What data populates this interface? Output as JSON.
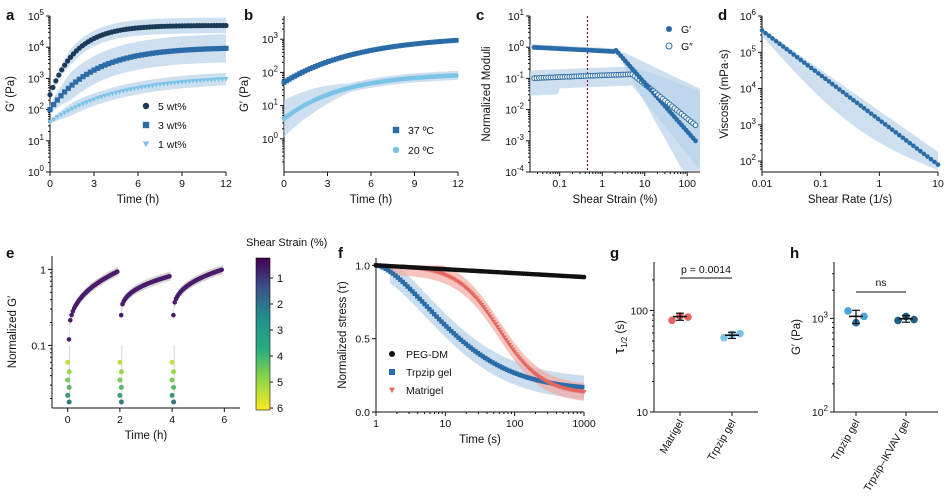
{
  "colors": {
    "dark": "#1b3a5a",
    "mid": "#2b6ca8",
    "light": "#7cc3e8",
    "band": "#b9d3ea",
    "red": "#e3665f",
    "redband": "#f2a9a3",
    "black": "#111111",
    "vline": "#8a1d38"
  },
  "panels": {
    "a": "a",
    "b": "b",
    "c": "c",
    "d": "d",
    "e": "e",
    "f": "f",
    "g": "g",
    "h": "h"
  },
  "colorbar": {
    "title": "Shear Strain (%)",
    "ticks": [
      "1",
      "2",
      "3",
      "4",
      "5",
      "6"
    ]
  },
  "chart_data": [
    {
      "id": "a",
      "type": "scatter",
      "xlabel": "Time (h)",
      "ylabel": "G′ (Pa)",
      "xlim": [
        0,
        12
      ],
      "ylim": [
        1,
        100000
      ],
      "yscale": "log",
      "xticks": [
        "0",
        "3",
        "6",
        "9",
        "12"
      ],
      "yticks": [
        "10^0",
        "10^1",
        "10^2",
        "10^3",
        "10^4",
        "10^5"
      ],
      "series": [
        {
          "name": "5 wt%",
          "model": {
            "start": 300,
            "end": 50000,
            "tau": 1.8
          }
        },
        {
          "name": "3 wt%",
          "model": {
            "start": 100,
            "end": 10000,
            "tau": 3.0
          }
        },
        {
          "name": "1 wt%",
          "model": {
            "start": 40,
            "end": 1200,
            "tau": 4.5
          }
        }
      ]
    },
    {
      "id": "b",
      "type": "scatter",
      "xlabel": "Time (h)",
      "ylabel": "G′ (Pa)",
      "xlim": [
        0,
        12
      ],
      "ylim": [
        0.1,
        5000
      ],
      "yscale": "log",
      "xticks": [
        "0",
        "3",
        "6",
        "9",
        "12"
      ],
      "yticks": [
        "10^0",
        "10^1",
        "10^2",
        "10^3"
      ],
      "series": [
        {
          "name": "37 ºC",
          "model": {
            "start": 50,
            "end": 1100,
            "tau": 5
          }
        },
        {
          "name": "20 ºC",
          "model": {
            "start": 4,
            "end": 95,
            "tau": 4
          }
        }
      ]
    },
    {
      "id": "c",
      "type": "scatter",
      "xlabel": "Shear Strain (%)",
      "ylabel": "Normalized Moduli",
      "xlim": [
        0.02,
        200
      ],
      "ylim": [
        0.0001,
        10
      ],
      "xscale": "log",
      "yscale": "log",
      "xticks": [
        "0.1",
        "1",
        "10",
        "100"
      ],
      "yticks": [
        "10^-4",
        "10^-3",
        "10^-2",
        "10^-1",
        "10^0",
        "10^1"
      ],
      "vline_x": 0.45,
      "series": [
        {
          "name": "G′",
          "plateau": 1.0,
          "yield": 2.0,
          "end": 0.0007
        },
        {
          "name": "G″",
          "plateau": 0.1,
          "yield": 10.0,
          "end": 0.003
        }
      ]
    },
    {
      "id": "d",
      "type": "scatter",
      "xlabel": "Shear Rate (1/s)",
      "ylabel": "Viscosity (mPa·s)",
      "xlim": [
        0.01,
        10
      ],
      "ylim": [
        50,
        1000000
      ],
      "xscale": "log",
      "yscale": "log",
      "xticks": [
        "0.01",
        "0.1",
        "1",
        "10"
      ],
      "yticks": [
        "10^2",
        "10^3",
        "10^4",
        "10^5",
        "10^6"
      ],
      "series": [
        {
          "name": "viscosity",
          "x": [
            0.01,
            10
          ],
          "y": [
            400000,
            80
          ]
        }
      ]
    },
    {
      "id": "e",
      "type": "scatter",
      "xlabel": "Time (h)",
      "ylabel": "Normalized G′",
      "xlim": [
        -0.6,
        6.6
      ],
      "ylim": [
        0.015,
        1.5
      ],
      "yscale": "log",
      "xticks": [
        "0",
        "2",
        "4",
        "6"
      ],
      "yticks": [
        "0.1",
        "1"
      ],
      "cycles": [
        {
          "start": 0,
          "rise_start": 0.12,
          "end": 0.95
        },
        {
          "start": 2,
          "rise_start": 0.25,
          "end": 0.82
        },
        {
          "start": 4,
          "rise_start": 0.25,
          "end": 1.0
        }
      ]
    },
    {
      "id": "f",
      "type": "scatter",
      "xlabel": "Time (s)",
      "ylabel": "Normalized stress (τ)",
      "xlim": [
        1,
        1000
      ],
      "ylim": [
        0,
        1.05
      ],
      "xscale": "log",
      "xticks": [
        "1",
        "10",
        "100",
        "1000"
      ],
      "yticks": [
        "0.0",
        "0.5",
        "1.0"
      ],
      "series": [
        {
          "name": "PEG-DM",
          "start": 1.0,
          "end": 0.92
        },
        {
          "name": "Trpzip gel",
          "start": 1.0,
          "end": 0.15
        },
        {
          "name": "Matrigel",
          "start": 1.0,
          "end": 0.12
        }
      ]
    },
    {
      "id": "g",
      "type": "scatter",
      "ylabel": "τ1/2 (s)",
      "ylabel_main": "τ",
      "ylabel_sub": "1/2 (s)",
      "ylim": [
        10,
        300
      ],
      "yscale": "log",
      "yticks": [
        "10",
        "100"
      ],
      "categories": [
        "Matrigel",
        "Trpzip gel"
      ],
      "values": [
        87,
        57
      ],
      "points": [
        [
          80,
          88,
          86
        ],
        [
          54,
          58,
          59
        ]
      ],
      "errors": [
        7,
        4
      ],
      "annotation": "p = 0.0014"
    },
    {
      "id": "h",
      "type": "scatter",
      "ylabel": "G′ (Pa)",
      "ylim": [
        100,
        4000
      ],
      "yscale": "log",
      "yticks": [
        "10^2",
        "10^3"
      ],
      "categories": [
        "Trpzip gel",
        "Trpzip–IKVAV gel"
      ],
      "values": [
        1050,
        990
      ],
      "points": [
        [
          1200,
          900,
          1050
        ],
        [
          950,
          1050,
          970
        ]
      ],
      "errors": [
        170,
        80
      ],
      "annotation": "ns"
    }
  ]
}
